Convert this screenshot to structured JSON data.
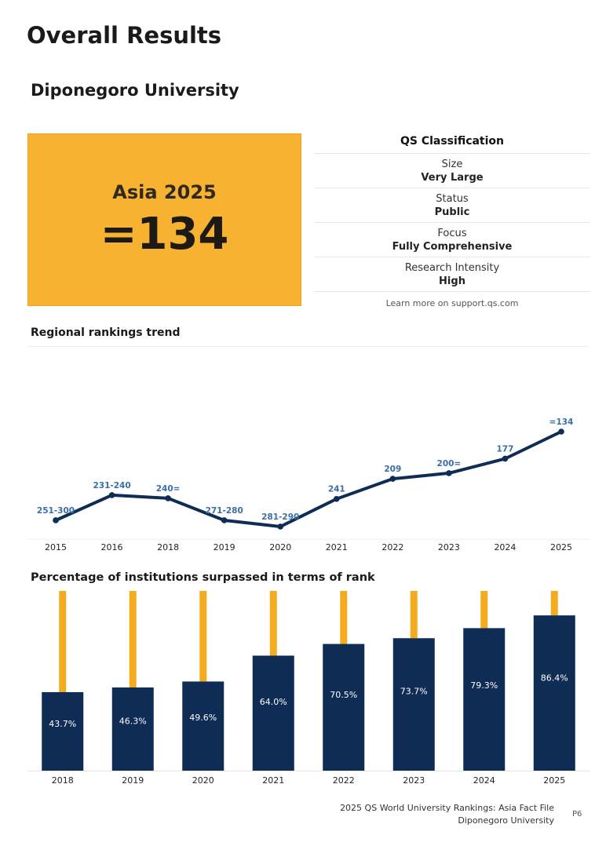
{
  "header": {
    "title": "Overall Results"
  },
  "university": {
    "name": "Diponegoro University"
  },
  "rank_box": {
    "region_year": "Asia 2025",
    "rank": "=134",
    "color": "#f8b232"
  },
  "classification": {
    "title": "QS Classification",
    "rows": [
      {
        "label": "Size",
        "value": "Very Large"
      },
      {
        "label": "Status",
        "value": "Public"
      },
      {
        "label": "Focus",
        "value": "Fully Comprehensive"
      },
      {
        "label": "Research Intensity",
        "value": "High"
      }
    ],
    "link": "Learn more on support.qs.com"
  },
  "chart_data": [
    {
      "type": "line",
      "title": "Regional rankings trend",
      "x": [
        "2015",
        "2016",
        "2018",
        "2019",
        "2020",
        "2021",
        "2022",
        "2023",
        "2024",
        "2025"
      ],
      "y_labels": [
        "251-300",
        "231-240",
        "240=",
        "271-280",
        "281-290",
        "241",
        "209",
        "200=",
        "177",
        "=134"
      ],
      "y": [
        275,
        235,
        240,
        275,
        285,
        241,
        209,
        200,
        177,
        134
      ],
      "y_inverted": true,
      "color": "#0f2c55",
      "label_color": "#3b6ea5"
    },
    {
      "type": "bar",
      "title": "Percentage of institutions surpassed in terms of rank",
      "categories": [
        "2018",
        "2019",
        "2020",
        "2021",
        "2022",
        "2023",
        "2024",
        "2025"
      ],
      "values": [
        43.7,
        46.3,
        49.6,
        64.0,
        70.5,
        73.7,
        79.3,
        86.4
      ],
      "value_labels": [
        "43.7%",
        "46.3%",
        "49.6%",
        "64.0%",
        "70.5%",
        "73.7%",
        "79.3%",
        "86.4%"
      ],
      "ylim": [
        0,
        100
      ],
      "bar_color": "#0f2c55",
      "remainder_color": "#f5ab1e"
    }
  ],
  "footer": {
    "line1": "2025 QS World University Rankings: Asia Fact File",
    "line2": "Diponegoro University",
    "page": "P6"
  }
}
